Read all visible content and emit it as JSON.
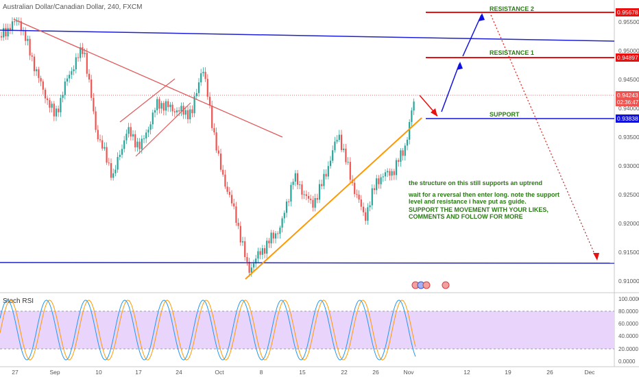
{
  "header": {
    "title": "Australian Dollar/Canadian Dollar, 240, FXCM"
  },
  "colors": {
    "up": "#26a69a",
    "down": "#ef5350",
    "blue_line": "#1c1fd6",
    "red_line": "#e53935",
    "orange": "#ff9800",
    "resistance": "#e81010",
    "support": "#1010e0",
    "note": "#2a7a14",
    "rsi_bg": "#e9d4fb",
    "rsi_k": "#2196f3",
    "rsi_d": "#ff9800"
  },
  "chart_data": {
    "type": "candlestick",
    "price_axis": {
      "ticks": [
        "0.95500",
        "0.95000",
        "0.94500",
        "0.94000",
        "0.93500",
        "0.93000",
        "0.92500",
        "0.92000",
        "0.91500",
        "0.91000"
      ]
    },
    "time_axis": {
      "ticks": [
        "27",
        "Sep",
        "10",
        "17",
        "24",
        "Oct",
        "8",
        "15",
        "22",
        "26",
        "Nov",
        "12",
        "19",
        "26",
        "Dec"
      ]
    },
    "price_labels": {
      "resistance2": "0.95678",
      "resistance1": "0.94897",
      "last": "0.94243",
      "countdown": "02:36:47",
      "support": "0.93838"
    },
    "levels": [
      {
        "name": "RESISTANCE 2",
        "price": 0.95678
      },
      {
        "name": "RESISTANCE 1",
        "price": 0.94897
      },
      {
        "name": "SUPPORT",
        "price": 0.93838
      }
    ],
    "annotations": {
      "note1": "the structure on this still supports an uptrend",
      "note2a": "wait for a reversal then enter long. note the support",
      "note2b": "level and resistance i have put as guide.",
      "note3a": "SUPPORT THE MOVEMENT WITH YOUR LIKES,",
      "note3b": "COMMENTS AND FOLLOW FOR MORE"
    },
    "indicator": {
      "name": "Stoch RSI",
      "ticks": [
        "100.0000",
        "80.0000",
        "60.0000",
        "40.0000",
        "20.0000",
        "0.0000"
      ],
      "ylim": [
        0,
        100
      ],
      "bands": [
        20,
        80
      ]
    }
  }
}
